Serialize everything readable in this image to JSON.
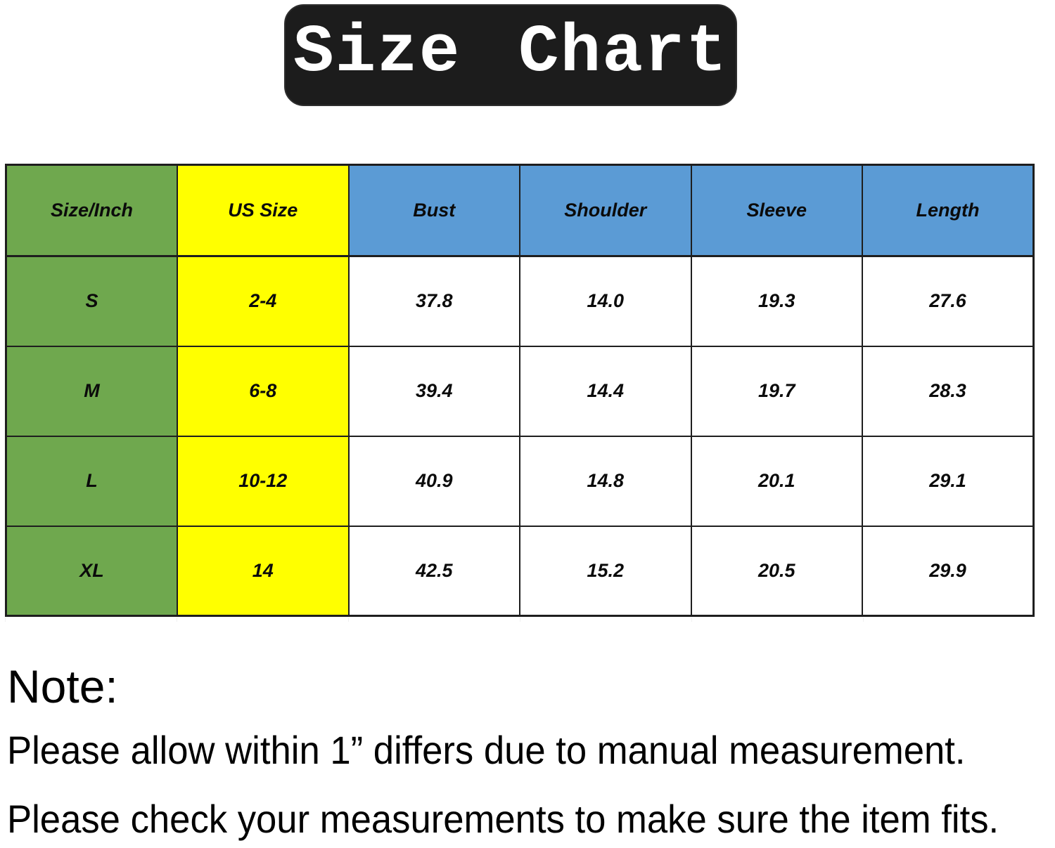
{
  "title": {
    "label": "Size Chart"
  },
  "chart_data": {
    "type": "table",
    "title": "Size Chart",
    "columns": [
      "Size/Inch",
      "US Size",
      "Bust",
      "Shoulder",
      "Sleeve",
      "Length"
    ],
    "rows": [
      [
        "S",
        "2-4",
        "37.8",
        "14.0",
        "19.3",
        "27.6"
      ],
      [
        "M",
        "6-8",
        "39.4",
        "14.4",
        "19.7",
        "28.3"
      ],
      [
        "L",
        "10-12",
        "40.9",
        "14.8",
        "20.1",
        "29.1"
      ],
      [
        "XL",
        "14",
        "42.5",
        "15.2",
        "20.5",
        "29.9"
      ]
    ]
  },
  "note": {
    "heading": "Note:",
    "line1": "Please allow within 1” differs due to manual measurement.",
    "line2": "Please check your measurements to make sure the item fits."
  },
  "colors": {
    "size_column_green": "#6fa84e",
    "us_size_column_yellow": "#ffff00",
    "header_blue": "#5b9bd5",
    "title_bg": "#1c1c1c",
    "title_text": "#ffffff",
    "table_border": "#1e1e1e"
  }
}
